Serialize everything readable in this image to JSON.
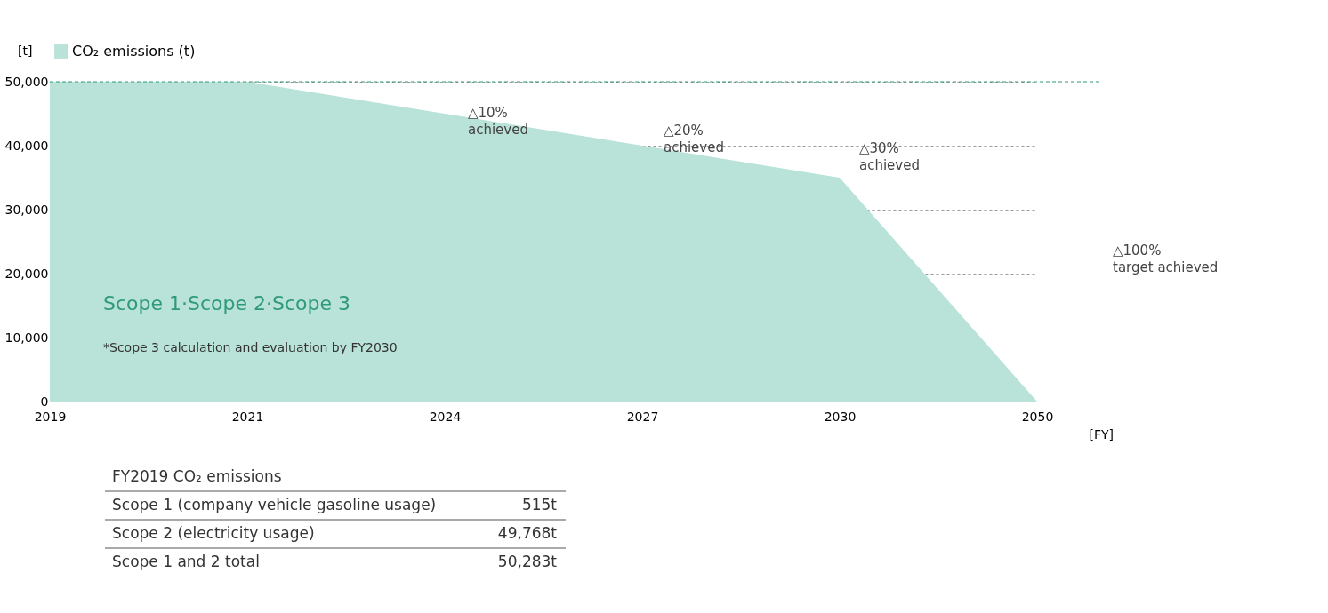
{
  "chart_data": {
    "type": "area",
    "ylabel": "[t]",
    "xlabel": "[FY]",
    "categories": [
      "2019",
      "2021",
      "2024",
      "2027",
      "2030",
      "2050"
    ],
    "series": [
      {
        "name": "CO₂ emissions (t)",
        "color": "#b9e2d8",
        "values": [
          50000,
          50000,
          45000,
          40000,
          35000,
          0
        ]
      }
    ],
    "ylim": [
      0,
      50000
    ],
    "yticks": [
      0,
      {
        "value": 10000,
        "label": "10,000"
      },
      {
        "value": 20000,
        "label": "20,000"
      },
      {
        "value": 30000,
        "label": "30,000"
      },
      {
        "value": 40000,
        "label": "40,000"
      },
      {
        "value": 50000,
        "label": "50,000"
      }
    ],
    "grid": "y",
    "legend": "top left",
    "ref_lines": [
      {
        "axis": "y",
        "value": 50000,
        "color": "#2e9a78",
        "line_style": "dashed"
      }
    ],
    "annotations": [
      "△10%\nachieved",
      "△20%\nachieved",
      "△30%\nachieved",
      "△100%\ntarget achieved",
      "Scope 1·Scope 2·Scope 3",
      "*Scope 3 calculation and evaluation by FY2030",
      "FY2019 CO₂ emissions",
      "Scope 1 (company vehicle gasoline usage)",
      "515t",
      "Scope 2 (electricity usage)",
      "49,768t",
      "Scope 1 and 2 total",
      "50,283t"
    ]
  }
}
